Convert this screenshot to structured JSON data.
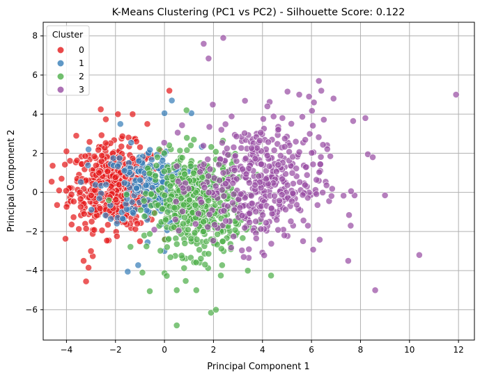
{
  "chart_data": {
    "type": "scatter",
    "title": "K-Means Clustering (PC1 vs PC2) - Silhouette Score: 0.122",
    "xlabel": "Principal Component 1",
    "ylabel": "Principal Component 2",
    "xlim": [
      -4.95,
      12.65
    ],
    "ylim": [
      -7.55,
      8.7
    ],
    "xticks": [
      -4,
      -2,
      0,
      2,
      4,
      6,
      8,
      10,
      12
    ],
    "yticks": [
      -6,
      -4,
      -2,
      0,
      2,
      4,
      6,
      8
    ],
    "grid": true,
    "legend": {
      "title": "Cluster",
      "placement": "top-left"
    },
    "series": [
      {
        "name": "0",
        "color": "#e41a1c",
        "cloud": {
          "n": 520,
          "cx": -2.0,
          "cy": 0.3,
          "sx": 0.9,
          "sy": 1.05
        },
        "points": [
          [
            -3.2,
            -4.55
          ],
          [
            -3.3,
            -3.5
          ],
          [
            -3.1,
            -3.85
          ],
          [
            -3.0,
            -3.0
          ],
          [
            -2.6,
            4.25
          ],
          [
            -1.9,
            4.0
          ],
          [
            -1.3,
            4.0
          ],
          [
            0.2,
            5.2
          ],
          [
            -4.2,
            0.7
          ],
          [
            -4.3,
            0.1
          ],
          [
            -1.0,
            -2.5
          ],
          [
            -0.7,
            3.5
          ],
          [
            -4.0,
            2.1
          ],
          [
            -3.6,
            2.9
          ]
        ]
      },
      {
        "name": "1",
        "color": "#377eb8",
        "cloud": {
          "n": 230,
          "cx": -0.5,
          "cy": 0.3,
          "sx": 1.0,
          "sy": 1.0
        },
        "points": [
          [
            0.3,
            4.7
          ],
          [
            1.1,
            4.05
          ],
          [
            0.0,
            4.05
          ],
          [
            -1.5,
            -4.05
          ],
          [
            -1.8,
            3.5
          ],
          [
            -3.1,
            2.2
          ],
          [
            0.0,
            -3.0
          ]
        ]
      },
      {
        "name": "2",
        "color": "#4daf4a",
        "cloud": {
          "n": 520,
          "cx": 1.3,
          "cy": -0.6,
          "sx": 0.95,
          "sy": 1.25
        },
        "points": [
          [
            0.5,
            -6.8
          ],
          [
            1.9,
            -6.15
          ],
          [
            2.1,
            -6.0
          ],
          [
            -0.6,
            -5.05
          ],
          [
            0.5,
            -5.0
          ],
          [
            1.3,
            -5.0
          ],
          [
            4.35,
            -4.25
          ],
          [
            3.4,
            -4.0
          ],
          [
            -0.9,
            -4.1
          ],
          [
            2.3,
            -4.25
          ],
          [
            0.9,
            4.2
          ],
          [
            1.2,
            2.7
          ]
        ]
      },
      {
        "name": "3",
        "color": "#984ea3",
        "cloud": {
          "n": 430,
          "cx": 3.9,
          "cy": 0.5,
          "sx": 1.3,
          "sy": 1.6
        },
        "points": [
          [
            11.9,
            5.0
          ],
          [
            10.4,
            -3.2
          ],
          [
            8.6,
            -5.0
          ],
          [
            9.0,
            -0.15
          ],
          [
            8.3,
            1.95
          ],
          [
            8.5,
            1.8
          ],
          [
            8.2,
            3.8
          ],
          [
            7.7,
            3.65
          ],
          [
            7.6,
            -1.7
          ],
          [
            7.5,
            -3.5
          ],
          [
            6.9,
            4.8
          ],
          [
            6.3,
            5.7
          ],
          [
            6.4,
            5.2
          ],
          [
            5.9,
            4.9
          ],
          [
            2.4,
            7.9
          ],
          [
            1.6,
            7.6
          ],
          [
            1.8,
            6.85
          ],
          [
            6.1,
            4.6
          ],
          [
            5.5,
            5.0
          ],
          [
            4.2,
            4.4
          ]
        ]
      }
    ]
  }
}
